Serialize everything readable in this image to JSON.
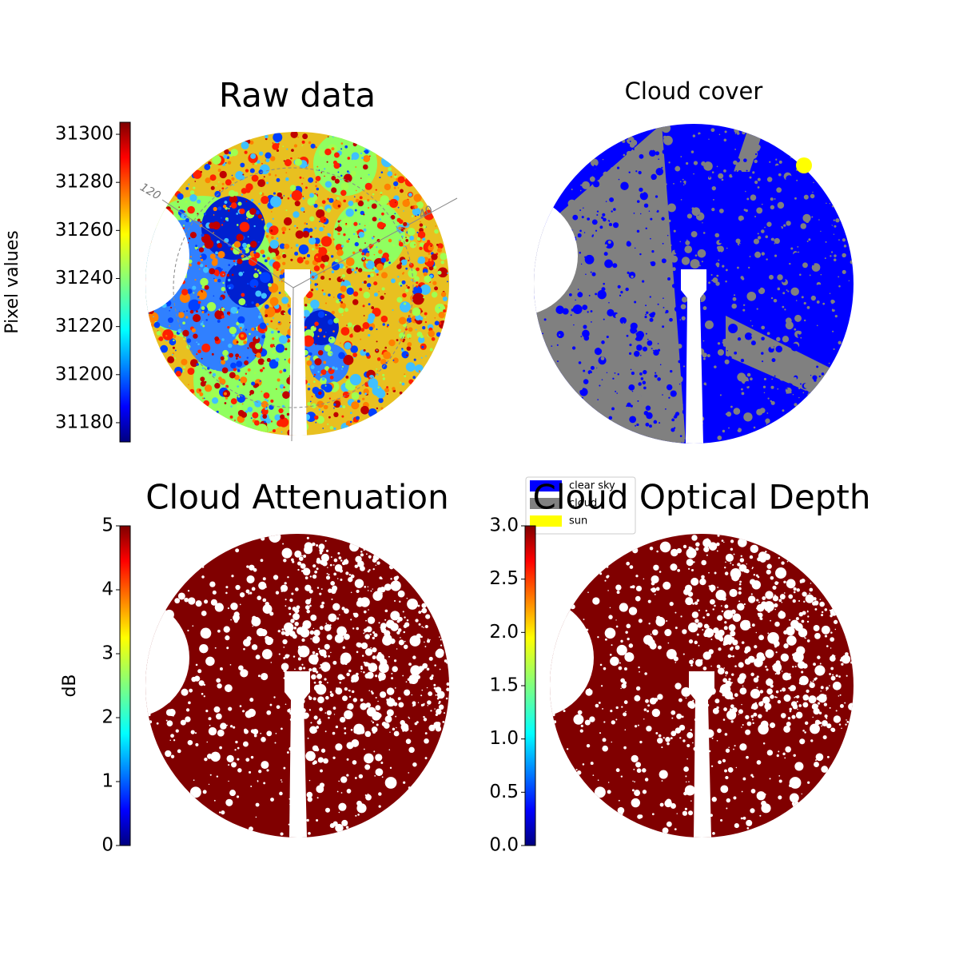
{
  "chart_data": [
    {
      "type": "heatmap",
      "title": "Raw data",
      "colormap": "jet",
      "colorbar_label": "Pixel values",
      "ylim": [
        31172,
        31305
      ],
      "yticks": [
        31180,
        31200,
        31220,
        31240,
        31260,
        31280,
        31300
      ],
      "annotations": [
        "120",
        "40"
      ]
    },
    {
      "type": "classification",
      "title": "Cloud cover",
      "classes": [
        {
          "name": "clear sky",
          "color": "#0000ff"
        },
        {
          "name": "cloud",
          "color": "#808080"
        },
        {
          "name": "sun",
          "color": "#ffff00"
        }
      ]
    },
    {
      "type": "heatmap",
      "title": "Cloud Attenuation",
      "colormap": "jet",
      "colorbar_label": "dB",
      "ylim": [
        0,
        5
      ],
      "yticks": [
        0,
        1,
        2,
        3,
        4,
        5
      ]
    },
    {
      "type": "heatmap",
      "title": "Cloud Optical Depth",
      "colormap": "jet",
      "ylim": [
        0,
        3
      ],
      "yticks": [
        {
          "value": 0,
          "label": "0.0"
        },
        {
          "value": 0.5,
          "label": "0.5"
        },
        {
          "value": 1,
          "label": "1.0"
        },
        {
          "value": 1.5,
          "label": "1.5"
        },
        {
          "value": 2,
          "label": "2.0"
        },
        {
          "value": 2.5,
          "label": "2.5"
        },
        {
          "value": 3,
          "label": "3.0"
        }
      ]
    }
  ]
}
